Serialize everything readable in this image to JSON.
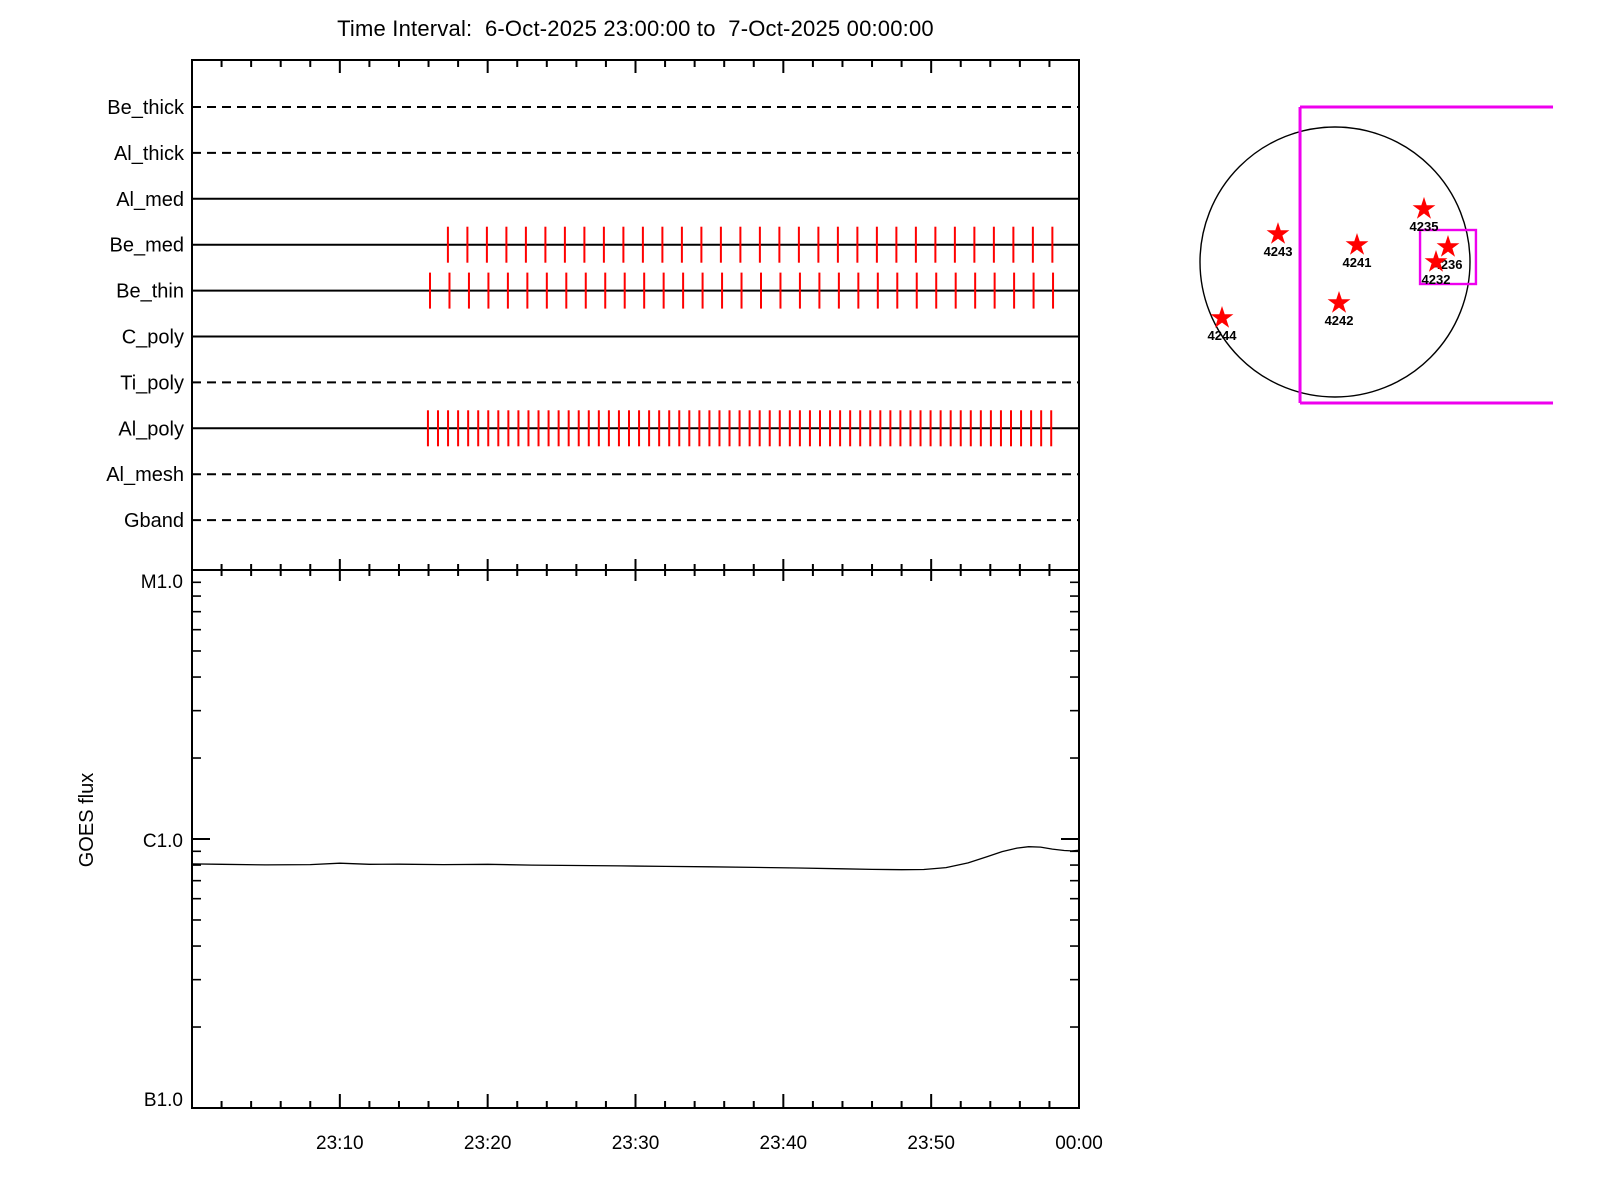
{
  "title": "Time Interval:  6-Oct-2025 23:00:00 to  7-Oct-2025 00:00:00",
  "colors": {
    "axis": "#000000",
    "text": "#000000",
    "exposure_tick": "#ff0000",
    "fov": "#ee00ee",
    "star": "#ff0000",
    "background": "#ffffff"
  },
  "chart_data": [
    {
      "id": "xrt-exposure-timeline",
      "type": "timeline",
      "time_start": "6-Oct-2025 23:00:00",
      "time_end": "7-Oct-2025 00:00:00",
      "x_minutes_span": 60,
      "x_minor_tick_step_min": 2,
      "x_major_tick_step_min": 10,
      "channels": [
        {
          "name": "Be_thick",
          "line_style": "dashed",
          "exposures": null
        },
        {
          "name": "Al_thick",
          "line_style": "dashed",
          "exposures": null
        },
        {
          "name": "Al_med",
          "line_style": "solid",
          "exposures": null
        },
        {
          "name": "Be_med",
          "line_style": "solid",
          "exposures": {
            "start_min": 17.31,
            "interval_min": 1.319,
            "count": 32
          }
        },
        {
          "name": "Be_thin",
          "line_style": "solid",
          "exposures": {
            "start_min": 16.1,
            "interval_min": 1.317,
            "count": 33
          }
        },
        {
          "name": "C_poly",
          "line_style": "solid",
          "exposures": null
        },
        {
          "name": "Ti_poly",
          "line_style": "dashed",
          "exposures": null
        },
        {
          "name": "Al_poly",
          "line_style": "solid",
          "exposures": {
            "start_min": 15.96,
            "interval_min": 0.68,
            "count": 63
          }
        },
        {
          "name": "Al_mesh",
          "line_style": "dashed",
          "exposures": null
        },
        {
          "name": "Gband",
          "line_style": "dashed",
          "exposures": null
        }
      ]
    },
    {
      "id": "goes-flux",
      "type": "line",
      "ylabel": "GOES flux",
      "y_scale": "log",
      "y_ticks": [
        {
          "label": "M1.0",
          "flux_wm2": 1e-05
        },
        {
          "label": "C1.0",
          "flux_wm2": 1e-06
        },
        {
          "label": "B1.0",
          "flux_wm2": 1e-07
        }
      ],
      "x_ticks": [
        {
          "label": "23:10",
          "min": 10
        },
        {
          "label": "23:20",
          "min": 20
        },
        {
          "label": "23:30",
          "min": 30
        },
        {
          "label": "23:40",
          "min": 40
        },
        {
          "label": "23:50",
          "min": 50
        },
        {
          "label": "00:00",
          "min": 60
        }
      ],
      "series": [
        {
          "name": "GOES flux",
          "units": "C-class (1e-6 W/m2)",
          "points_min_cunits": [
            [
              0,
              0.808
            ],
            [
              2,
              0.805
            ],
            [
              5,
              0.801
            ],
            [
              8,
              0.803
            ],
            [
              10,
              0.813
            ],
            [
              12,
              0.805
            ],
            [
              14,
              0.806
            ],
            [
              17,
              0.803
            ],
            [
              20,
              0.805
            ],
            [
              23,
              0.8
            ],
            [
              26,
              0.797
            ],
            [
              29,
              0.794
            ],
            [
              32,
              0.791
            ],
            [
              35,
              0.788
            ],
            [
              38,
              0.784
            ],
            [
              41,
              0.78
            ],
            [
              44,
              0.775
            ],
            [
              46,
              0.771
            ],
            [
              48,
              0.769
            ],
            [
              49.5,
              0.77
            ],
            [
              51,
              0.783
            ],
            [
              52.5,
              0.815
            ],
            [
              53.8,
              0.86
            ],
            [
              54.8,
              0.898
            ],
            [
              55.8,
              0.925
            ],
            [
              56.6,
              0.936
            ],
            [
              57.4,
              0.933
            ],
            [
              58.2,
              0.917
            ],
            [
              59,
              0.906
            ],
            [
              59.5,
              0.903
            ],
            [
              60,
              0.908
            ]
          ]
        }
      ]
    },
    {
      "id": "solar-map",
      "type": "scatter",
      "disk_label": "solar limb",
      "active_regions": [
        {
          "noaa": "4235",
          "fx": 0.659,
          "fy": -0.393
        },
        {
          "noaa": "4243",
          "fx": -0.422,
          "fy": -0.207
        },
        {
          "noaa": "4241",
          "fx": 0.163,
          "fy": -0.126
        },
        {
          "noaa": "4236",
          "fx": 0.837,
          "fy": -0.111
        },
        {
          "noaa": "4232",
          "fx": 0.748,
          "fy": 0.0
        },
        {
          "noaa": "4242",
          "fx": 0.03,
          "fy": 0.304
        },
        {
          "noaa": "4244",
          "fx": -0.837,
          "fy": 0.415
        }
      ],
      "fov_rects": [
        {
          "name": "fov-outer",
          "x1": -0.259,
          "y1": -1.148,
          "x2": 1.615,
          "y2": 1.044,
          "open_right": true
        },
        {
          "name": "fov-inner",
          "x1": 0.63,
          "y1": -0.237,
          "x2": 1.044,
          "y2": 0.163,
          "open_right": false
        }
      ]
    }
  ]
}
